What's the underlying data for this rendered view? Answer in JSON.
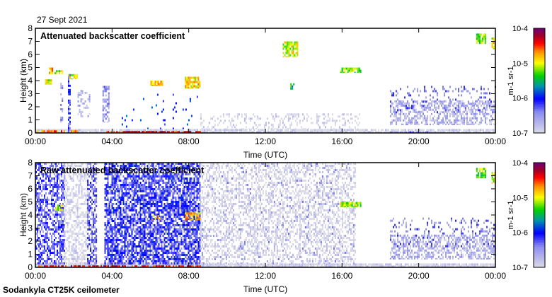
{
  "chart_data": [
    {
      "type": "heatmap",
      "title": "Attenuated backscatter coefficient",
      "date": "27 Sept 2021",
      "xlabel": "Time (UTC)",
      "ylabel": "Height (km)",
      "xlim": [
        0,
        24
      ],
      "ylim": [
        0,
        8
      ],
      "xticks": [
        "00:00",
        "04:00",
        "08:00",
        "12:00",
        "16:00",
        "20:00",
        "00:00"
      ],
      "yticks": [
        "0",
        "1",
        "2",
        "3",
        "4",
        "5",
        "6",
        "7",
        "8"
      ],
      "colorbar": {
        "label": "m-1 sr-1",
        "ticks": [
          "10-7",
          "10-6",
          "10-5",
          "10-4"
        ],
        "range_log10": [
          -7,
          -4
        ]
      },
      "features": [
        {
          "t": [
            0,
            24
          ],
          "h": [
            0,
            0.3
          ],
          "log10": -7.0,
          "density": 0.9
        },
        {
          "t": [
            0,
            2.2
          ],
          "h": [
            0,
            0.2
          ],
          "log10": -4.6,
          "density": 0.7
        },
        {
          "t": [
            3.7,
            8.6
          ],
          "h": [
            0,
            0.15
          ],
          "log10": -4.4,
          "density": 0.8
        },
        {
          "t": [
            0.5,
            0.8
          ],
          "h": [
            3.7,
            4.1
          ],
          "log10": -5.0,
          "density": 0.8
        },
        {
          "t": [
            0.7,
            0.9
          ],
          "h": [
            4.5,
            5.0
          ],
          "log10": -4.8,
          "density": 0.8
        },
        {
          "t": [
            1.0,
            1.4
          ],
          "h": [
            4.5,
            4.8
          ],
          "log10": -5.1,
          "density": 0.8
        },
        {
          "t": [
            1.7,
            2.2
          ],
          "h": [
            4.1,
            4.5
          ],
          "log10": -5.0,
          "density": 0.8
        },
        {
          "t": [
            1.3,
            1.4
          ],
          "h": [
            0.8,
            4.0
          ],
          "log10": -6.5,
          "density": 0.6
        },
        {
          "t": [
            1.7,
            1.8
          ],
          "h": [
            0,
            4.5
          ],
          "log10": -6.2,
          "density": 0.6
        },
        {
          "t": [
            2.2,
            2.8
          ],
          "h": [
            1.2,
            3.3
          ],
          "log10": -6.7,
          "density": 0.4
        },
        {
          "t": [
            3.5,
            3.8
          ],
          "h": [
            0.8,
            3.6
          ],
          "log10": -6.5,
          "density": 0.5
        },
        {
          "t": [
            6.0,
            6.6
          ],
          "h": [
            3.6,
            4.0
          ],
          "log10": -4.9,
          "density": 0.8
        },
        {
          "t": [
            7.8,
            8.6
          ],
          "h": [
            3.4,
            4.3
          ],
          "log10": -4.9,
          "density": 0.8
        },
        {
          "t": [
            4.5,
            8.6
          ],
          "h": [
            0.3,
            3.0
          ],
          "log10": -6.0,
          "density": 0.04
        },
        {
          "t": [
            8.6,
            17.0
          ],
          "h": [
            0.3,
            1.5
          ],
          "log10": -7.0,
          "density": 0.25
        },
        {
          "t": [
            12.9,
            13.7
          ],
          "h": [
            5.8,
            7.0
          ],
          "log10": -5.0,
          "density": 0.7
        },
        {
          "t": [
            13.3,
            13.5
          ],
          "h": [
            3.3,
            3.8
          ],
          "log10": -5.5,
          "density": 0.7
        },
        {
          "t": [
            15.9,
            17.0
          ],
          "h": [
            4.6,
            5.0
          ],
          "log10": -5.2,
          "density": 0.8
        },
        {
          "t": [
            18.5,
            24
          ],
          "h": [
            0.6,
            2.5
          ],
          "log10": -6.7,
          "density": 0.55
        },
        {
          "t": [
            18.5,
            24
          ],
          "h": [
            1.5,
            3.6
          ],
          "log10": -6.4,
          "density": 0.15
        },
        {
          "t": [
            18.5,
            20.5
          ],
          "h": [
            0,
            0.12
          ],
          "log10": -6.4,
          "density": 0.6
        },
        {
          "t": [
            23.0,
            23.5
          ],
          "h": [
            6.8,
            7.6
          ],
          "log10": -5.2,
          "density": 0.8
        },
        {
          "t": [
            23.8,
            24
          ],
          "h": [
            6.4,
            7.3
          ],
          "log10": -5.0,
          "density": 0.8
        }
      ]
    },
    {
      "type": "heatmap",
      "title": "Raw attenuated backscatter coefficient",
      "xlabel": "Time (UTC)",
      "ylabel": "Height (km)",
      "xlim": [
        0,
        24
      ],
      "ylim": [
        0,
        8
      ],
      "xticks": [
        "00:00",
        "04:00",
        "08:00",
        "12:00",
        "16:00",
        "20:00",
        "00:00"
      ],
      "yticks": [
        "0",
        "1",
        "2",
        "3",
        "4",
        "5",
        "6",
        "7",
        "8"
      ],
      "colorbar": {
        "label": "m-1 sr-1",
        "ticks": [
          "10-7",
          "10-6",
          "10-5",
          "10-4"
        ],
        "range_log10": [
          -7,
          -4
        ]
      },
      "features": [
        {
          "t": [
            0,
            24
          ],
          "h": [
            0,
            0.3
          ],
          "log10": -7.0,
          "density": 0.9
        },
        {
          "t": [
            0,
            1.5
          ],
          "h": [
            0.2,
            8
          ],
          "log10": -6.3,
          "density": 0.6
        },
        {
          "t": [
            1.5,
            2.7
          ],
          "h": [
            0.2,
            8
          ],
          "log10": -7.0,
          "density": 0.5
        },
        {
          "t": [
            2.7,
            3.2
          ],
          "h": [
            0.2,
            8
          ],
          "log10": -6.3,
          "density": 0.6
        },
        {
          "t": [
            3.6,
            8.6
          ],
          "h": [
            0.2,
            8
          ],
          "log10": -6.2,
          "density": 0.7
        },
        {
          "t": [
            8.6,
            16.7
          ],
          "h": [
            0.2,
            8
          ],
          "log10": -7.0,
          "density": 0.45
        },
        {
          "t": [
            8.6,
            16.7
          ],
          "h": [
            0.2,
            8
          ],
          "log10": -6.6,
          "density": 0.06
        },
        {
          "t": [
            0,
            8.6
          ],
          "h": [
            0,
            0.15
          ],
          "log10": -4.4,
          "density": 0.7
        },
        {
          "t": [
            7.8,
            8.6
          ],
          "h": [
            3.6,
            4.2
          ],
          "log10": -4.8,
          "density": 0.8
        },
        {
          "t": [
            6.0,
            6.5
          ],
          "h": [
            3.6,
            4.0
          ],
          "log10": -4.9,
          "density": 0.5
        },
        {
          "t": [
            1.0,
            1.4
          ],
          "h": [
            4.3,
            4.8
          ],
          "log10": -5.1,
          "density": 0.6
        },
        {
          "t": [
            15.9,
            17.0
          ],
          "h": [
            4.6,
            5.0
          ],
          "log10": -5.1,
          "density": 0.8
        },
        {
          "t": [
            18.5,
            24
          ],
          "h": [
            0.6,
            2.5
          ],
          "log10": -6.7,
          "density": 0.55
        },
        {
          "t": [
            18.5,
            24
          ],
          "h": [
            1.5,
            3.8
          ],
          "log10": -6.4,
          "density": 0.15
        },
        {
          "t": [
            23.0,
            23.5
          ],
          "h": [
            6.8,
            7.6
          ],
          "log10": -5.2,
          "density": 0.8
        },
        {
          "t": [
            23.8,
            24
          ],
          "h": [
            6.4,
            7.3
          ],
          "log10": -5.0,
          "density": 0.8
        }
      ]
    }
  ],
  "footer": "Sodankyla CT25K ceilometer",
  "colorbar_label_parts": {
    "m": "m",
    "sup1": "-1",
    "sr": " sr",
    "sup2": "-1"
  }
}
